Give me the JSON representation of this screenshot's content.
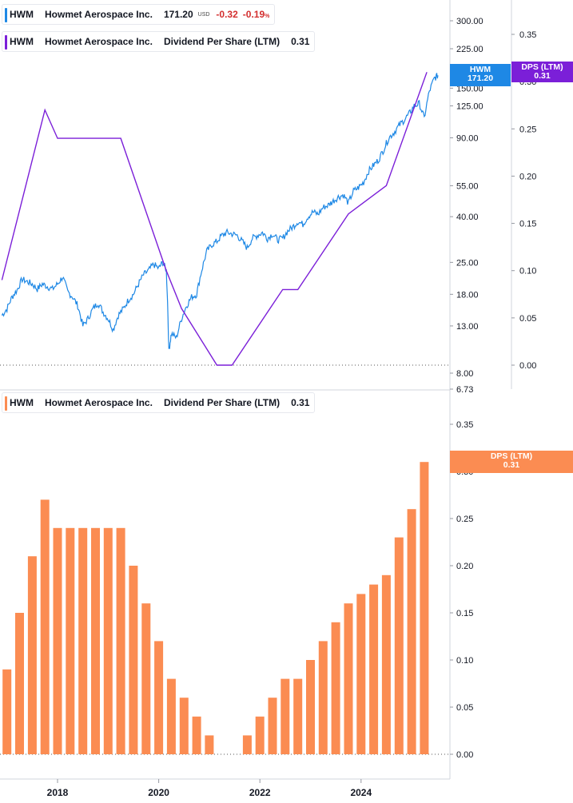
{
  "top_legend_1": {
    "symbol": "HWM",
    "name": "Howmet Aerospace Inc.",
    "price": "171.20",
    "currency": "USD",
    "change": "-0.32",
    "change_pct": "-0.19",
    "pct_sign": "%",
    "color": "#1e88e5"
  },
  "top_legend_2": {
    "symbol": "HWM",
    "name": "Howmet Aerospace Inc.",
    "metric": "Dividend Per Share (LTM)",
    "value": "0.31",
    "color": "#7b1fd8"
  },
  "bottom_legend": {
    "symbol": "HWM",
    "name": "Howmet Aerospace Inc.",
    "metric": "Dividend Per Share (LTM)",
    "value": "0.31",
    "color": "#fb8c52"
  },
  "price_tag": {
    "symbol": "HWM",
    "value": "171.20",
    "color": "#1e88e5"
  },
  "dps_tag_top": {
    "label": "DPS (LTM)",
    "value": "0.31",
    "color": "#7b1fd8"
  },
  "dps_tag_bottom": {
    "label": "DPS (LTM)",
    "value": "0.31",
    "color": "#fb8c52"
  },
  "chart_data": [
    {
      "type": "line",
      "scale": "log",
      "series": [
        {
          "name": "HWM",
          "axis": "price",
          "color": "#1e88e5",
          "points": [
            [
              2016.9,
              14.5
            ],
            [
              2017.0,
              15.5
            ],
            [
              2017.1,
              17.5
            ],
            [
              2017.2,
              18.8
            ],
            [
              2017.3,
              21.0
            ],
            [
              2017.4,
              20.5
            ],
            [
              2017.5,
              20.0
            ],
            [
              2017.6,
              19.0
            ],
            [
              2017.7,
              20.0
            ],
            [
              2017.8,
              19.5
            ],
            [
              2017.9,
              19.0
            ],
            [
              2018.0,
              20.0
            ],
            [
              2018.1,
              21.5
            ],
            [
              2018.2,
              18.5
            ],
            [
              2018.3,
              17.5
            ],
            [
              2018.4,
              16.0
            ],
            [
              2018.5,
              13.0
            ],
            [
              2018.6,
              14.0
            ],
            [
              2018.7,
              15.5
            ],
            [
              2018.8,
              16.5
            ],
            [
              2018.9,
              15.0
            ],
            [
              2019.0,
              14.0
            ],
            [
              2019.1,
              12.5
            ],
            [
              2019.2,
              14.5
            ],
            [
              2019.3,
              15.5
            ],
            [
              2019.4,
              17.0
            ],
            [
              2019.5,
              18.0
            ],
            [
              2019.6,
              20.0
            ],
            [
              2019.7,
              22.0
            ],
            [
              2019.8,
              23.0
            ],
            [
              2019.9,
              24.5
            ],
            [
              2020.0,
              23.5
            ],
            [
              2020.08,
              25.0
            ],
            [
              2020.15,
              23.0
            ],
            [
              2020.2,
              10.0
            ],
            [
              2020.25,
              12.0
            ],
            [
              2020.35,
              11.5
            ],
            [
              2020.45,
              14.0
            ],
            [
              2020.55,
              16.0
            ],
            [
              2020.65,
              17.5
            ],
            [
              2020.75,
              18.0
            ],
            [
              2020.85,
              23.0
            ],
            [
              2020.95,
              28.0
            ],
            [
              2021.05,
              30.0
            ],
            [
              2021.15,
              31.0
            ],
            [
              2021.25,
              33.0
            ],
            [
              2021.35,
              34.0
            ],
            [
              2021.45,
              33.5
            ],
            [
              2021.55,
              33.0
            ],
            [
              2021.65,
              31.0
            ],
            [
              2021.75,
              29.0
            ],
            [
              2021.85,
              32.0
            ],
            [
              2021.95,
              33.0
            ],
            [
              2022.05,
              34.0
            ],
            [
              2022.15,
              32.0
            ],
            [
              2022.25,
              33.5
            ],
            [
              2022.35,
              31.5
            ],
            [
              2022.45,
              32.0
            ],
            [
              2022.55,
              34.5
            ],
            [
              2022.65,
              36.0
            ],
            [
              2022.75,
              38.0
            ],
            [
              2022.85,
              37.0
            ],
            [
              2022.95,
              40.0
            ],
            [
              2023.05,
              42.0
            ],
            [
              2023.15,
              41.0
            ],
            [
              2023.25,
              44.0
            ],
            [
              2023.35,
              45.0
            ],
            [
              2023.45,
              47.0
            ],
            [
              2023.55,
              49.0
            ],
            [
              2023.65,
              50.0
            ],
            [
              2023.75,
              46.0
            ],
            [
              2023.85,
              52.0
            ],
            [
              2023.95,
              54.0
            ],
            [
              2024.05,
              57.0
            ],
            [
              2024.15,
              64.0
            ],
            [
              2024.25,
              68.0
            ],
            [
              2024.35,
              72.0
            ],
            [
              2024.45,
              80.0
            ],
            [
              2024.55,
              90.0
            ],
            [
              2024.65,
              95.0
            ],
            [
              2024.75,
              102.0
            ],
            [
              2024.85,
              108.0
            ],
            [
              2024.95,
              115.0
            ],
            [
              2025.05,
              125.0
            ],
            [
              2025.15,
              128.0
            ],
            [
              2025.25,
              110.0
            ],
            [
              2025.35,
              145.0
            ],
            [
              2025.45,
              166.0
            ],
            [
              2025.52,
              171.2
            ]
          ]
        },
        {
          "name": "Dividend Per Share (LTM)",
          "axis": "dps",
          "color": "#7b1fd8",
          "points": [
            [
              2016.9,
              0.09
            ],
            [
              2017.75,
              0.27
            ],
            [
              2018.0,
              0.24
            ],
            [
              2019.25,
              0.24
            ],
            [
              2020.15,
              0.1
            ],
            [
              2020.45,
              0.06
            ],
            [
              2021.15,
              0.0
            ],
            [
              2021.45,
              0.0
            ],
            [
              2022.45,
              0.08
            ],
            [
              2022.75,
              0.08
            ],
            [
              2023.75,
              0.16
            ],
            [
              2024.5,
              0.19
            ],
            [
              2025.3,
              0.31
            ]
          ]
        }
      ],
      "price_axis_ticks": [
        300,
        225,
        150,
        125,
        90,
        55,
        40,
        25,
        18,
        13,
        8,
        6.73
      ],
      "dps_axis_ticks": [
        0.35,
        0.3,
        0.25,
        0.2,
        0.15,
        0.1,
        0.05,
        0.0
      ]
    },
    {
      "type": "bar",
      "series": [
        {
          "name": "Dividend Per Share (LTM)",
          "color": "#fb8c52",
          "points": [
            [
              2017.0,
              0.09
            ],
            [
              2017.25,
              0.15
            ],
            [
              2017.5,
              0.21
            ],
            [
              2017.75,
              0.27
            ],
            [
              2018.0,
              0.24
            ],
            [
              2018.25,
              0.24
            ],
            [
              2018.5,
              0.24
            ],
            [
              2018.75,
              0.24
            ],
            [
              2019.0,
              0.24
            ],
            [
              2019.25,
              0.24
            ],
            [
              2019.5,
              0.2
            ],
            [
              2019.75,
              0.16
            ],
            [
              2020.0,
              0.12
            ],
            [
              2020.25,
              0.08
            ],
            [
              2020.5,
              0.06
            ],
            [
              2020.75,
              0.04
            ],
            [
              2021.0,
              0.02
            ],
            [
              2021.25,
              0.0
            ],
            [
              2021.5,
              0.0
            ],
            [
              2021.75,
              0.02
            ],
            [
              2022.0,
              0.04
            ],
            [
              2022.25,
              0.06
            ],
            [
              2022.5,
              0.08
            ],
            [
              2022.75,
              0.08
            ],
            [
              2023.0,
              0.1
            ],
            [
              2023.25,
              0.12
            ],
            [
              2023.5,
              0.14
            ],
            [
              2023.75,
              0.16
            ],
            [
              2024.0,
              0.17
            ],
            [
              2024.25,
              0.18
            ],
            [
              2024.5,
              0.19
            ],
            [
              2024.75,
              0.23
            ],
            [
              2025.0,
              0.26
            ],
            [
              2025.25,
              0.31
            ]
          ]
        }
      ],
      "y_ticks": [
        0.35,
        0.3,
        0.25,
        0.2,
        0.15,
        0.1,
        0.05,
        0.0
      ],
      "x_ticks": [
        2018,
        2020,
        2022,
        2024
      ],
      "ylim": [
        0,
        0.35
      ]
    }
  ]
}
